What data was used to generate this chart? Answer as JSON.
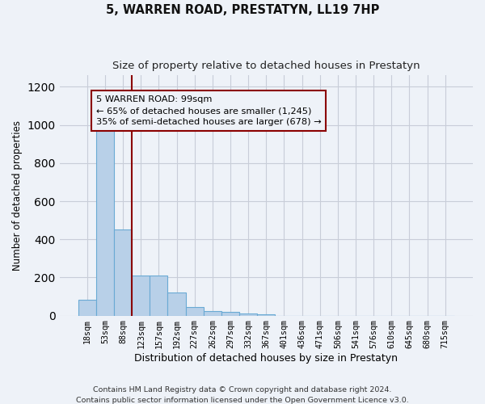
{
  "title1": "5, WARREN ROAD, PRESTATYN, LL19 7HP",
  "title2": "Size of property relative to detached houses in Prestatyn",
  "xlabel": "Distribution of detached houses by size in Prestatyn",
  "ylabel": "Number of detached properties",
  "categories": [
    "18sqm",
    "53sqm",
    "88sqm",
    "123sqm",
    "157sqm",
    "192sqm",
    "227sqm",
    "262sqm",
    "297sqm",
    "332sqm",
    "367sqm",
    "401sqm",
    "436sqm",
    "471sqm",
    "506sqm",
    "541sqm",
    "576sqm",
    "610sqm",
    "645sqm",
    "680sqm",
    "715sqm"
  ],
  "values": [
    85,
    975,
    450,
    210,
    210,
    120,
    45,
    25,
    20,
    10,
    5,
    0,
    0,
    0,
    0,
    0,
    0,
    0,
    0,
    0,
    0
  ],
  "bar_color": "#b8d0e8",
  "bar_edge_color": "#6aaad4",
  "ylim": [
    0,
    1260
  ],
  "yticks": [
    0,
    200,
    400,
    600,
    800,
    1000,
    1200
  ],
  "red_line_x": 2.5,
  "annotation_line1": "5 WARREN ROAD: 99sqm",
  "annotation_line2": "← 65% of detached houses are smaller (1,245)",
  "annotation_line3": "35% of semi-detached houses are larger (678) →",
  "footer1": "Contains HM Land Registry data © Crown copyright and database right 2024.",
  "footer2": "Contains public sector information licensed under the Open Government Licence v3.0.",
  "background_color": "#eef2f8",
  "grid_color": "#d8dde8",
  "title1_fontsize": 10.5,
  "title2_fontsize": 9.5,
  "bar_fontsize": 8,
  "ylabel_fontsize": 8.5,
  "xlabel_fontsize": 9
}
